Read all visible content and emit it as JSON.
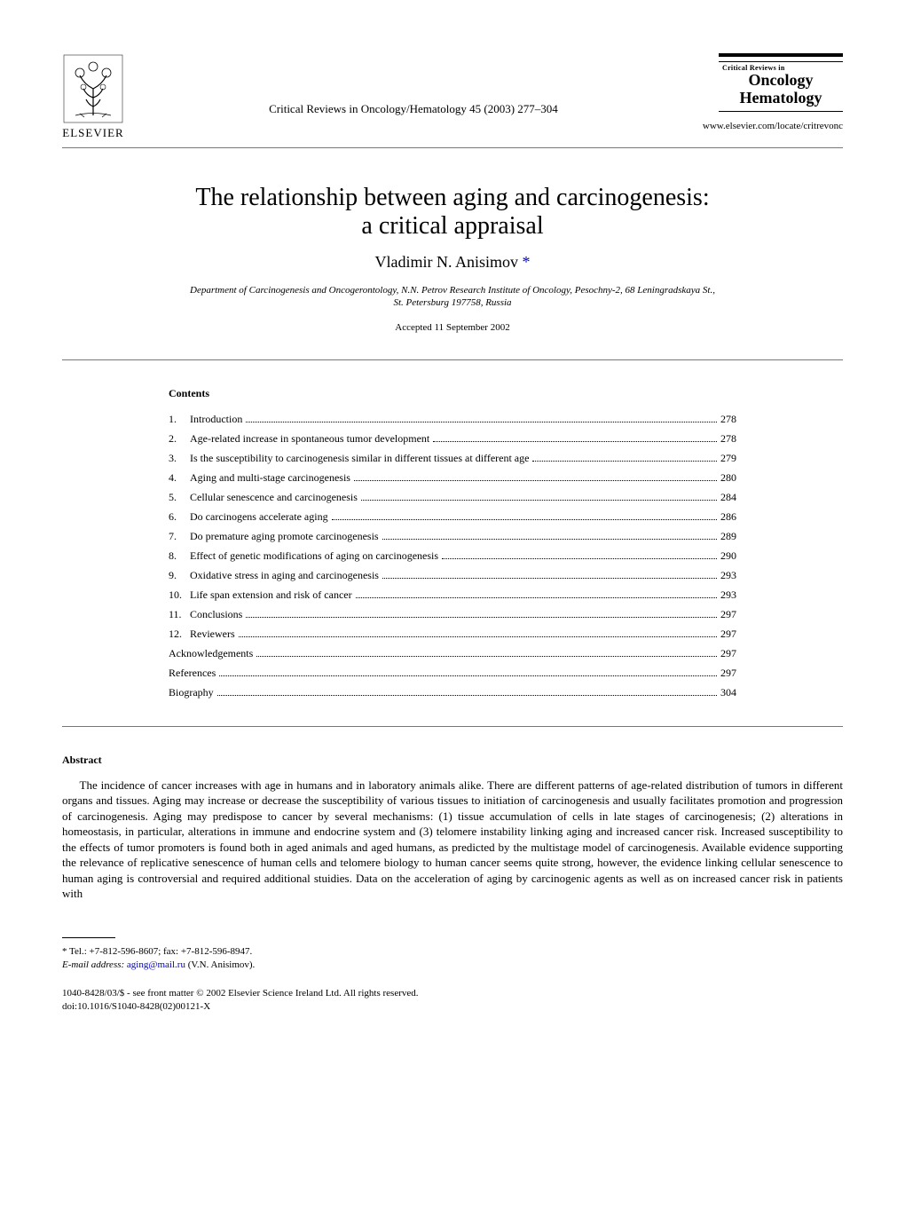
{
  "publisher": {
    "name": "ELSEVIER"
  },
  "journal": {
    "citation": "Critical Reviews in Oncology/Hematology 45 (2003) 277–304",
    "box_top": "Critical Reviews in",
    "box_line1": "Oncology",
    "box_line2": "Hematology",
    "url": "www.elsevier.com/locate/critrevonc"
  },
  "title": {
    "line1": "The relationship between aging and carcinogenesis:",
    "line2": "a critical appraisal"
  },
  "author": {
    "name": "Vladimir N. Anisimov",
    "marker": "*"
  },
  "affiliation": {
    "line1": "Department of Carcinogenesis and Oncogerontology, N.N. Petrov Research Institute of Oncology, Pesochny-2, 68 Leningradskaya St.,",
    "line2": "St. Petersburg 197758, Russia"
  },
  "accepted": "Accepted 11 September 2002",
  "contents": {
    "heading": "Contents",
    "items": [
      {
        "num": "1.",
        "label": "Introduction",
        "page": "278"
      },
      {
        "num": "2.",
        "label": "Age-related increase in spontaneous tumor development",
        "page": "278"
      },
      {
        "num": "3.",
        "label": "Is the susceptibility to carcinogenesis similar in different tissues at different age",
        "page": "279"
      },
      {
        "num": "4.",
        "label": "Aging and multi-stage carcinogenesis",
        "page": "280"
      },
      {
        "num": "5.",
        "label": "Cellular senescence and carcinogenesis",
        "page": "284"
      },
      {
        "num": "6.",
        "label": "Do carcinogens accelerate aging",
        "page": "286"
      },
      {
        "num": "7.",
        "label": "Do premature aging promote carcinogenesis",
        "page": "289"
      },
      {
        "num": "8.",
        "label": "Effect of genetic modifications of aging on carcinogenesis",
        "page": "290"
      },
      {
        "num": "9.",
        "label": "Oxidative stress in aging and carcinogenesis",
        "page": "293"
      },
      {
        "num": "10.",
        "label": "Life span extension and risk of cancer",
        "page": "293"
      },
      {
        "num": "11.",
        "label": "Conclusions",
        "page": "297"
      },
      {
        "num": "12.",
        "label": "Reviewers",
        "page": "297"
      },
      {
        "num": "",
        "label": "Acknowledgements",
        "page": "297"
      },
      {
        "num": "",
        "label": "References",
        "page": "297"
      },
      {
        "num": "",
        "label": "Biography",
        "page": "304"
      }
    ]
  },
  "abstract": {
    "heading": "Abstract",
    "text": "The incidence of cancer increases with age in humans and in laboratory animals alike. There are different patterns of age-related distribution of tumors in different organs and tissues. Aging may increase or decrease the susceptibility of various tissues to initiation of carcinogenesis and usually facilitates promotion and progression of carcinogenesis. Aging may predispose to cancer by several mechanisms: (1) tissue accumulation of cells in late stages of carcinogenesis; (2) alterations in homeostasis, in particular, alterations in immune and endocrine system and (3) telomere instability linking aging and increased cancer risk. Increased susceptibility to the effects of tumor promoters is found both in aged animals and aged humans, as predicted by the multistage model of carcinogenesis. Available evidence supporting the relevance of replicative senescence of human cells and telomere biology to human cancer seems quite strong, however, the evidence linking cellular senescence to human aging is controversial and required additional stuidies. Data on the acceleration of aging by carcinogenic agents as well as on increased cancer risk in patients with"
  },
  "footnote": {
    "tel": "* Tel.: +7-812-596-8607; fax: +7-812-596-8947.",
    "email_label": "E-mail address:",
    "email": "aging@mail.ru",
    "email_name": "(V.N. Anisimov)."
  },
  "bottom": {
    "copyright": "1040-8428/03/$ - see front matter © 2002 Elsevier Science Ireland Ltd. All rights reserved.",
    "doi": "doi:10.1016/S1040-8428(02)00121-X"
  }
}
